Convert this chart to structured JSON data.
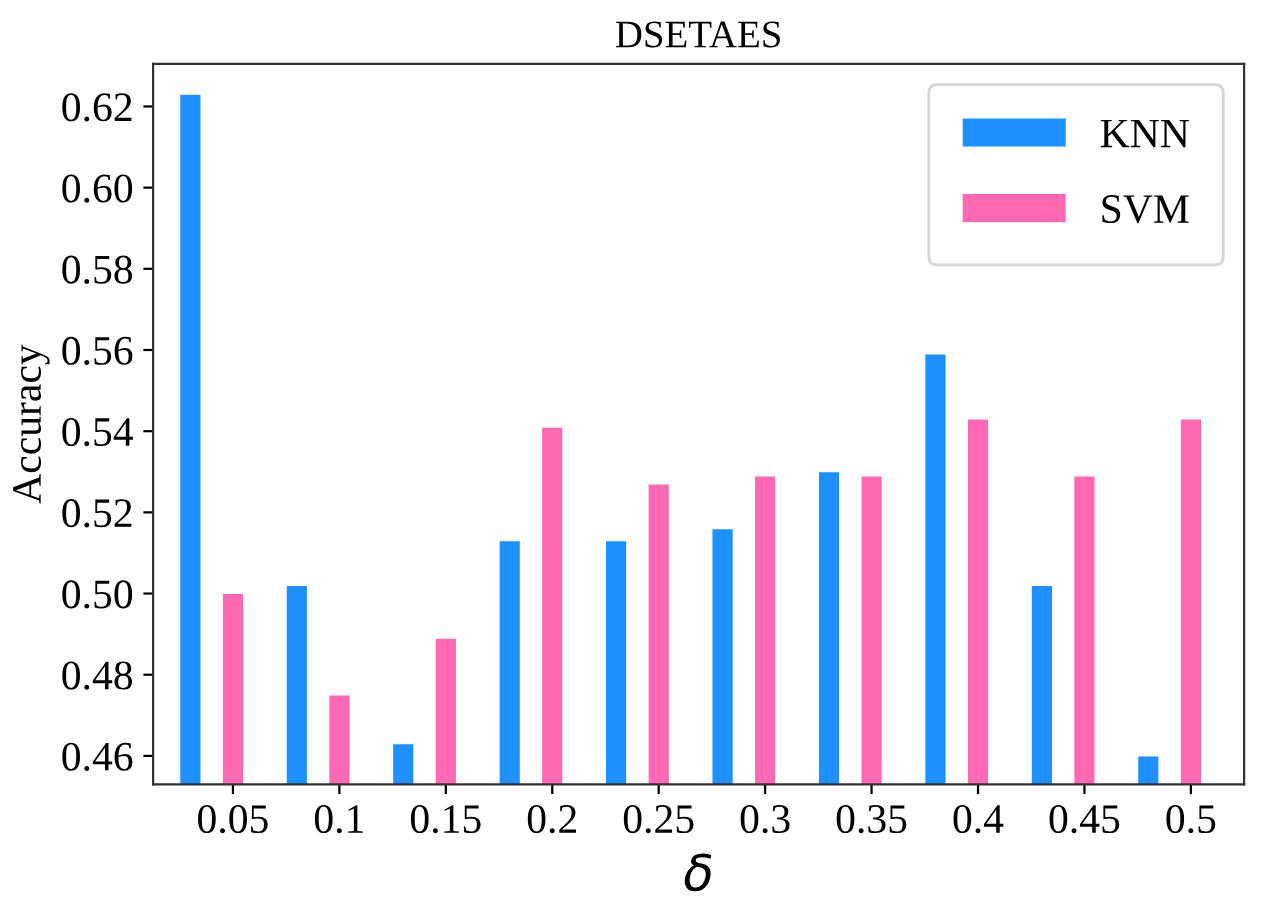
{
  "chart_data": {
    "type": "bar",
    "title": "DSETAES",
    "xlabel": "δ",
    "ylabel": "Accuracy",
    "categories": [
      "0.05",
      "0.1",
      "0.15",
      "0.2",
      "0.25",
      "0.3",
      "0.35",
      "0.4",
      "0.45",
      "0.5"
    ],
    "series": [
      {
        "name": "KNN",
        "color": "#1e90ff",
        "values": [
          0.623,
          0.502,
          0.463,
          0.513,
          0.513,
          0.516,
          0.53,
          0.559,
          0.502,
          0.46
        ]
      },
      {
        "name": "SVM",
        "color": "#ff69b4",
        "values": [
          0.5,
          0.475,
          0.489,
          0.541,
          0.527,
          0.529,
          0.529,
          0.543,
          0.529,
          0.543
        ]
      }
    ],
    "ylim": [
      0.453,
      0.6305
    ],
    "yticks": [
      {
        "value": 0.46,
        "label": "0.46"
      },
      {
        "value": 0.48,
        "label": "0.48"
      },
      {
        "value": 0.5,
        "label": "0.50"
      },
      {
        "value": 0.52,
        "label": "0.52"
      },
      {
        "value": 0.54,
        "label": "0.54"
      },
      {
        "value": 0.56,
        "label": "0.56"
      },
      {
        "value": 0.58,
        "label": "0.58"
      },
      {
        "value": 0.6,
        "label": "0.60"
      },
      {
        "value": 0.62,
        "label": "0.62"
      }
    ],
    "grid": false,
    "legend": "top right"
  }
}
